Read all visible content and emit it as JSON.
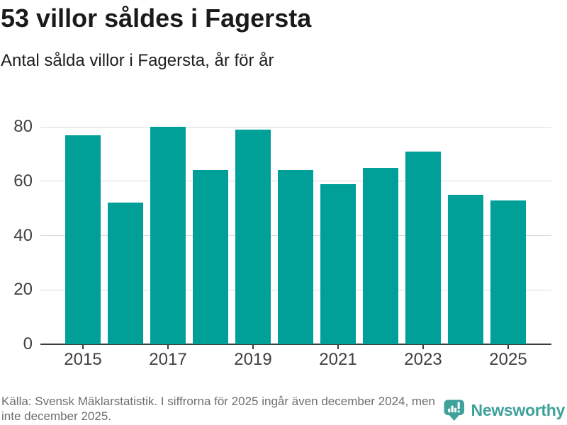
{
  "header": {
    "title": "53 villor såldes i Fagersta",
    "subtitle": "Antal sålda villor i Fagersta, år för år"
  },
  "chart_data": {
    "type": "bar",
    "title": "53 villor såldes i Fagersta",
    "subtitle": "Antal sålda villor i Fagersta, år för år",
    "categories": [
      "2015",
      "2016",
      "2017",
      "2018",
      "2019",
      "2020",
      "2021",
      "2022",
      "2023",
      "2024",
      "2025"
    ],
    "values": [
      77,
      52,
      80,
      64,
      79,
      64,
      59,
      65,
      71,
      55,
      53
    ],
    "xlabel": "",
    "ylabel": "",
    "ylim": [
      0,
      80
    ],
    "yticks": [
      0,
      20,
      40,
      60,
      80
    ],
    "xtick_labels": [
      "2015",
      "2017",
      "2019",
      "2021",
      "2023",
      "2025"
    ],
    "bar_color": "#00A099",
    "gridline_color": "#dbdbdb",
    "grid": true,
    "legend": false
  },
  "footer": {
    "source_text": "Källa: Svensk Mäklarstatistik. I siffrorna för 2025 ingår även december 2024, men\ninte december 2025.",
    "logo_text": "Newsworthy",
    "logo_color": "#3FA19B"
  }
}
